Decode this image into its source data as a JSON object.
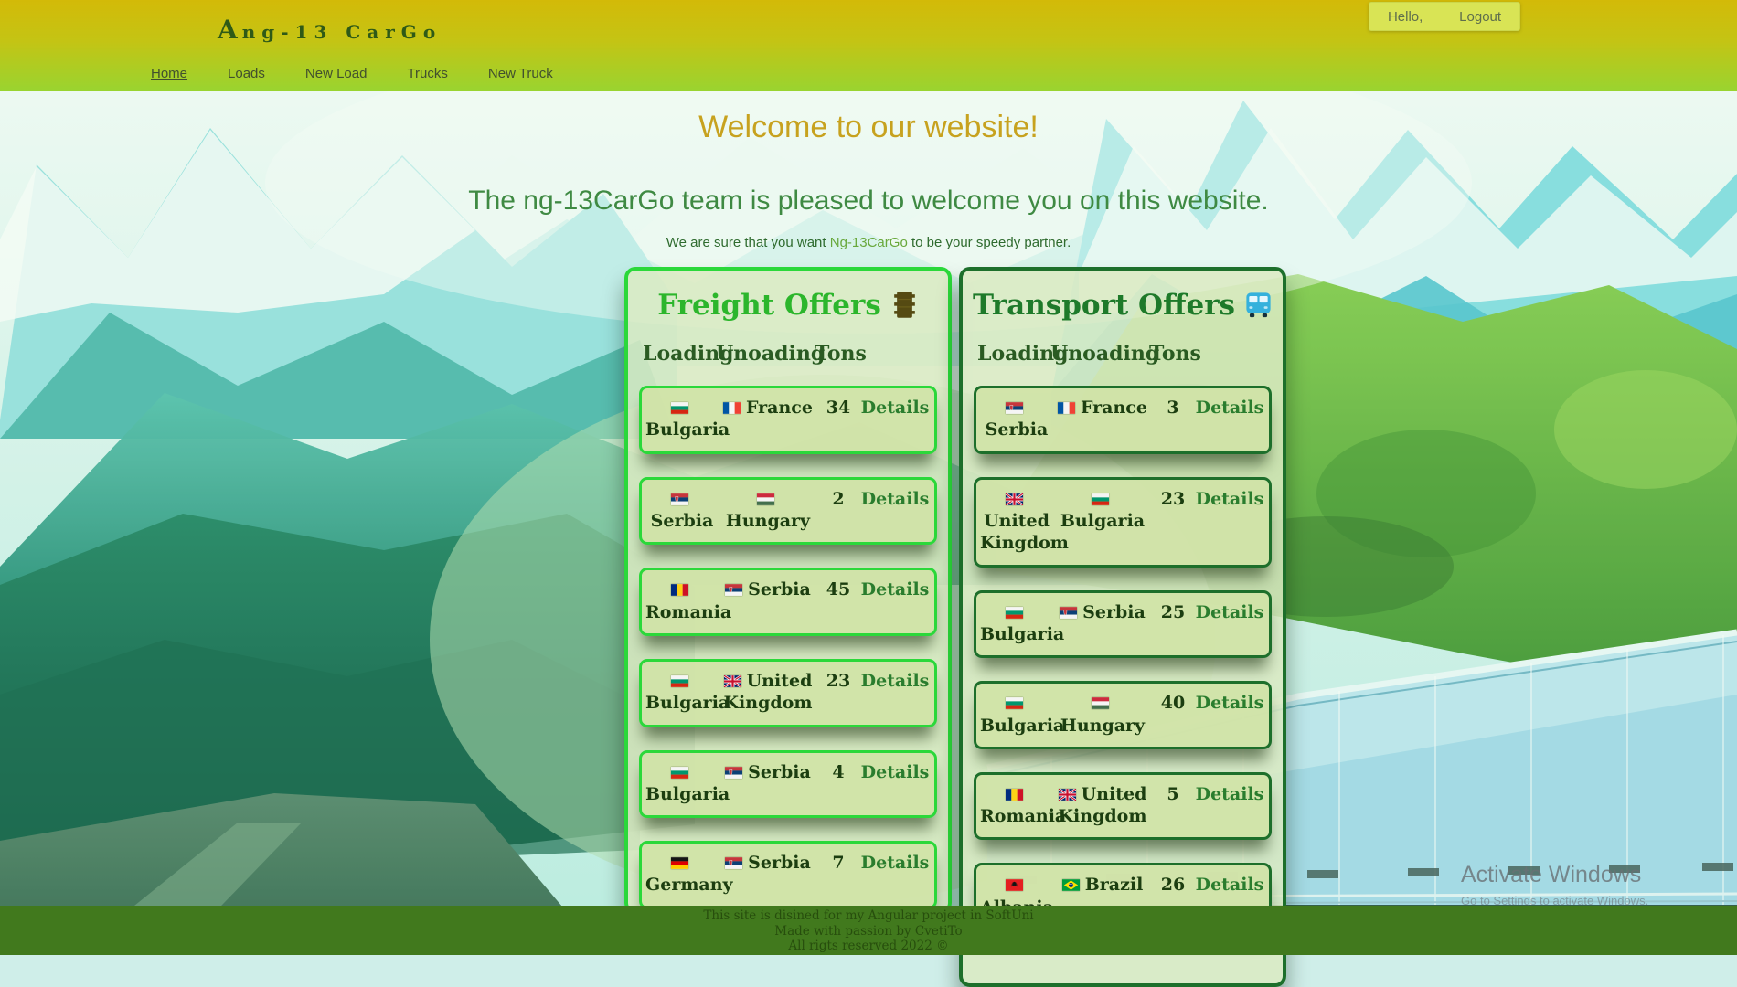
{
  "header": {
    "logo_initial": "A",
    "logo_rest": "ng-13 CarGo",
    "greeting": "Hello,",
    "logout": "Logout",
    "nav": [
      {
        "label": "Home",
        "active": true
      },
      {
        "label": "Loads",
        "active": false
      },
      {
        "label": "New Load",
        "active": false
      },
      {
        "label": "Trucks",
        "active": false
      },
      {
        "label": "New Truck",
        "active": false
      }
    ]
  },
  "hero": {
    "title": "Welcome to our website!",
    "subtitle": "The ng-13CarGo team is pleased to welcome you on this website.",
    "tagline_prefix": "We are sure that you want",
    "tagline_brand": "Ng-13CarGo",
    "tagline_suffix": "to be your speedy partner."
  },
  "table": {
    "columns": {
      "loading": "Loading",
      "unloading": "Unoading",
      "tons": "Tons"
    },
    "details_label": "Details"
  },
  "panels": [
    {
      "title": "Freight Offers",
      "icon": "barrel-icon",
      "accent_border": "#2bd83a",
      "title_color": "#2cb62c",
      "rows": [
        {
          "loading": {
            "country": "Bulgaria",
            "flag": "bulgaria-flag-icon"
          },
          "unloading": {
            "country": "France",
            "flag": "france-flag-icon"
          },
          "tons": "34"
        },
        {
          "loading": {
            "country": "Serbia",
            "flag": "serbia-flag-icon"
          },
          "unloading": {
            "country": "Hungary",
            "flag": "hungary-flag-icon"
          },
          "tons": "2"
        },
        {
          "loading": {
            "country": "Romania",
            "flag": "romania-flag-icon"
          },
          "unloading": {
            "country": "Serbia",
            "flag": "serbia-flag-icon"
          },
          "tons": "45"
        },
        {
          "loading": {
            "country": "Bulgaria",
            "flag": "bulgaria-flag-icon"
          },
          "unloading": {
            "country": "United Kingdom",
            "flag": "uk-flag-icon"
          },
          "tons": "23"
        },
        {
          "loading": {
            "country": "Bulgaria",
            "flag": "bulgaria-flag-icon"
          },
          "unloading": {
            "country": "Serbia",
            "flag": "serbia-flag-icon"
          },
          "tons": "4"
        },
        {
          "loading": {
            "country": "Germany",
            "flag": "germany-flag-icon"
          },
          "unloading": {
            "country": "Serbia",
            "flag": "serbia-flag-icon"
          },
          "tons": "7"
        }
      ]
    },
    {
      "title": "Transport Offers",
      "icon": "bus-icon",
      "accent_border": "#1d6f2b",
      "title_color": "#1e7a2a",
      "rows": [
        {
          "loading": {
            "country": "Serbia",
            "flag": "serbia-flag-icon"
          },
          "unloading": {
            "country": "France",
            "flag": "france-flag-icon"
          },
          "tons": "3"
        },
        {
          "loading": {
            "country": "United Kingdom",
            "flag": "uk-flag-icon"
          },
          "unloading": {
            "country": "Bulgaria",
            "flag": "bulgaria-flag-icon"
          },
          "tons": "23"
        },
        {
          "loading": {
            "country": "Bulgaria",
            "flag": "bulgaria-flag-icon"
          },
          "unloading": {
            "country": "Serbia",
            "flag": "serbia-flag-icon"
          },
          "tons": "25"
        },
        {
          "loading": {
            "country": "Bulgaria",
            "flag": "bulgaria-flag-icon"
          },
          "unloading": {
            "country": "Hungary",
            "flag": "hungary-flag-icon"
          },
          "tons": "40"
        },
        {
          "loading": {
            "country": "Romania",
            "flag": "romania-flag-icon"
          },
          "unloading": {
            "country": "United Kingdom",
            "flag": "uk-flag-icon"
          },
          "tons": "5"
        },
        {
          "loading": {
            "country": "Albania",
            "flag": "albania-flag-icon"
          },
          "unloading": {
            "country": "Brazil",
            "flag": "brazil-flag-icon"
          },
          "tons": "26"
        }
      ]
    }
  ],
  "footer": {
    "line1": "This site is disined for my Angular project in SoftUni",
    "line2": "Made with passion by CvetiTo",
    "line3": "All rigts reserved 2022 ©"
  },
  "watermark": {
    "line1": "Activate Windows",
    "line2": "Go to Settings to activate Windows."
  }
}
